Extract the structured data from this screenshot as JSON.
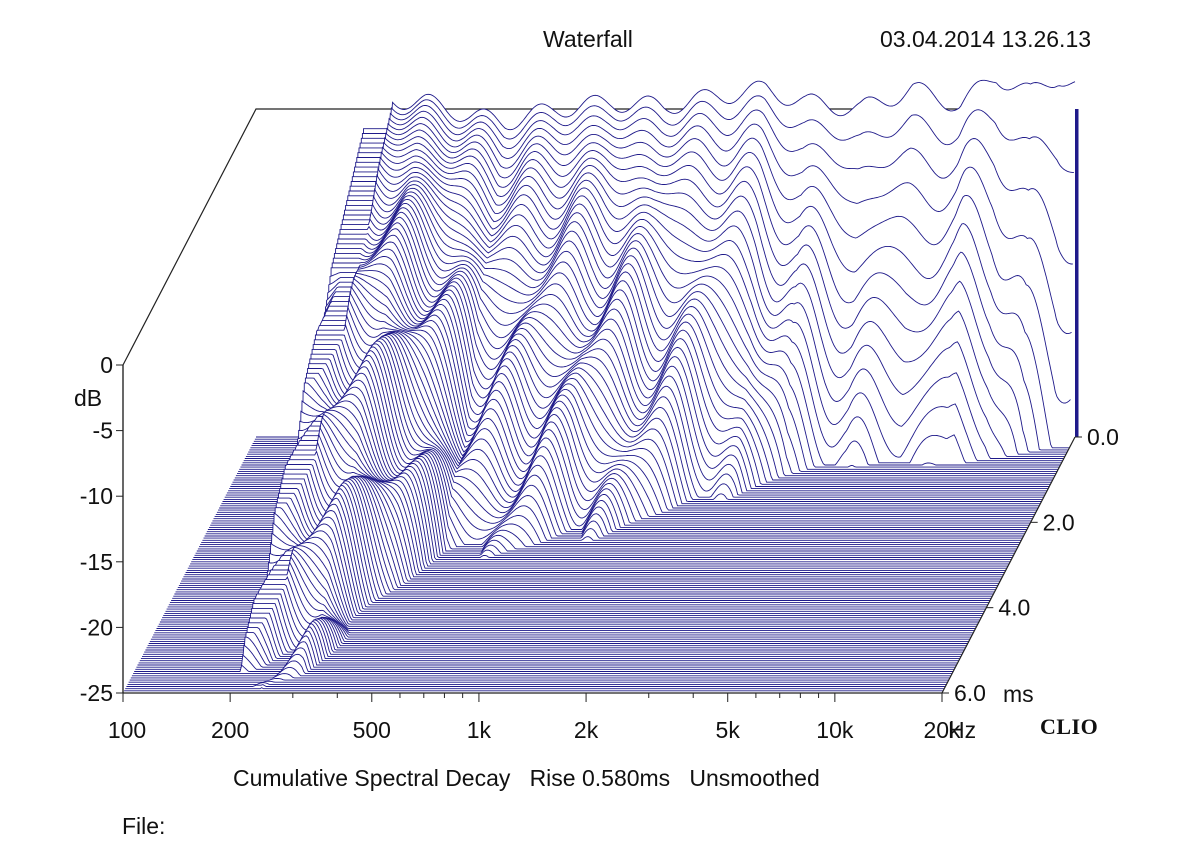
{
  "header": {
    "title": "Waterfall",
    "timestamp": "03.04.2014 13.26.13"
  },
  "footer": {
    "caption": "Cumulative Spectral Decay   Rise 0.580ms   Unsmoothed",
    "file_label": "File:",
    "brand": "CLIO"
  },
  "chart_data": {
    "type": "waterfall",
    "title": "Waterfall",
    "subtitle": "Cumulative Spectral Decay   Rise 0.580ms   Unsmoothed",
    "x_axis": {
      "scale": "log",
      "range": [
        100,
        20000
      ],
      "ticks": [
        100,
        200,
        500,
        1000,
        2000,
        5000,
        10000,
        20000
      ],
      "tick_labels": [
        "100",
        "200",
        "500",
        "1k",
        "2k",
        "5k",
        "10k",
        "20k"
      ],
      "unit_label": "Hz"
    },
    "y_axis": {
      "range": [
        -25,
        0
      ],
      "ticks": [
        0,
        -5,
        -10,
        -15,
        -20,
        -25
      ],
      "tick_labels": [
        "0",
        "-5",
        "-10",
        "-15",
        "-20",
        "-25"
      ],
      "unit_label": "dB"
    },
    "z_axis": {
      "range": [
        0,
        6
      ],
      "ticks": [
        0,
        2,
        4,
        6
      ],
      "tick_labels": [
        "0.0",
        "2.0",
        "4.0",
        "6.0"
      ],
      "unit_label": "ms"
    },
    "rise_ms": 0.58,
    "smoothing": "Unsmoothed",
    "slice_count": 120,
    "series_color": "#1f1a8a",
    "front_response": {
      "freq": [
        200,
        230,
        300,
        400,
        500,
        700,
        1000,
        1400,
        2000,
        2700,
        3500,
        5000,
        7000,
        9500,
        12000,
        15000,
        18000,
        20000
      ],
      "db": [
        0,
        0.8,
        0.5,
        -0.5,
        -1.0,
        0.0,
        0.5,
        0.2,
        1.0,
        1.5,
        0.5,
        0.0,
        1.5,
        0.3,
        2.5,
        1.2,
        2.5,
        1.8
      ]
    },
    "decay_times_ms": {
      "freq": [
        200,
        300,
        400,
        500,
        700,
        1000,
        1400,
        2000,
        2700,
        3500,
        5000,
        7000,
        10000,
        15000,
        20000
      ],
      "ms": [
        6.0,
        5.6,
        4.3,
        3.0,
        2.8,
        2.6,
        2.2,
        1.7,
        1.3,
        0.9,
        0.7,
        0.6,
        0.7,
        0.35,
        0.2
      ]
    }
  }
}
